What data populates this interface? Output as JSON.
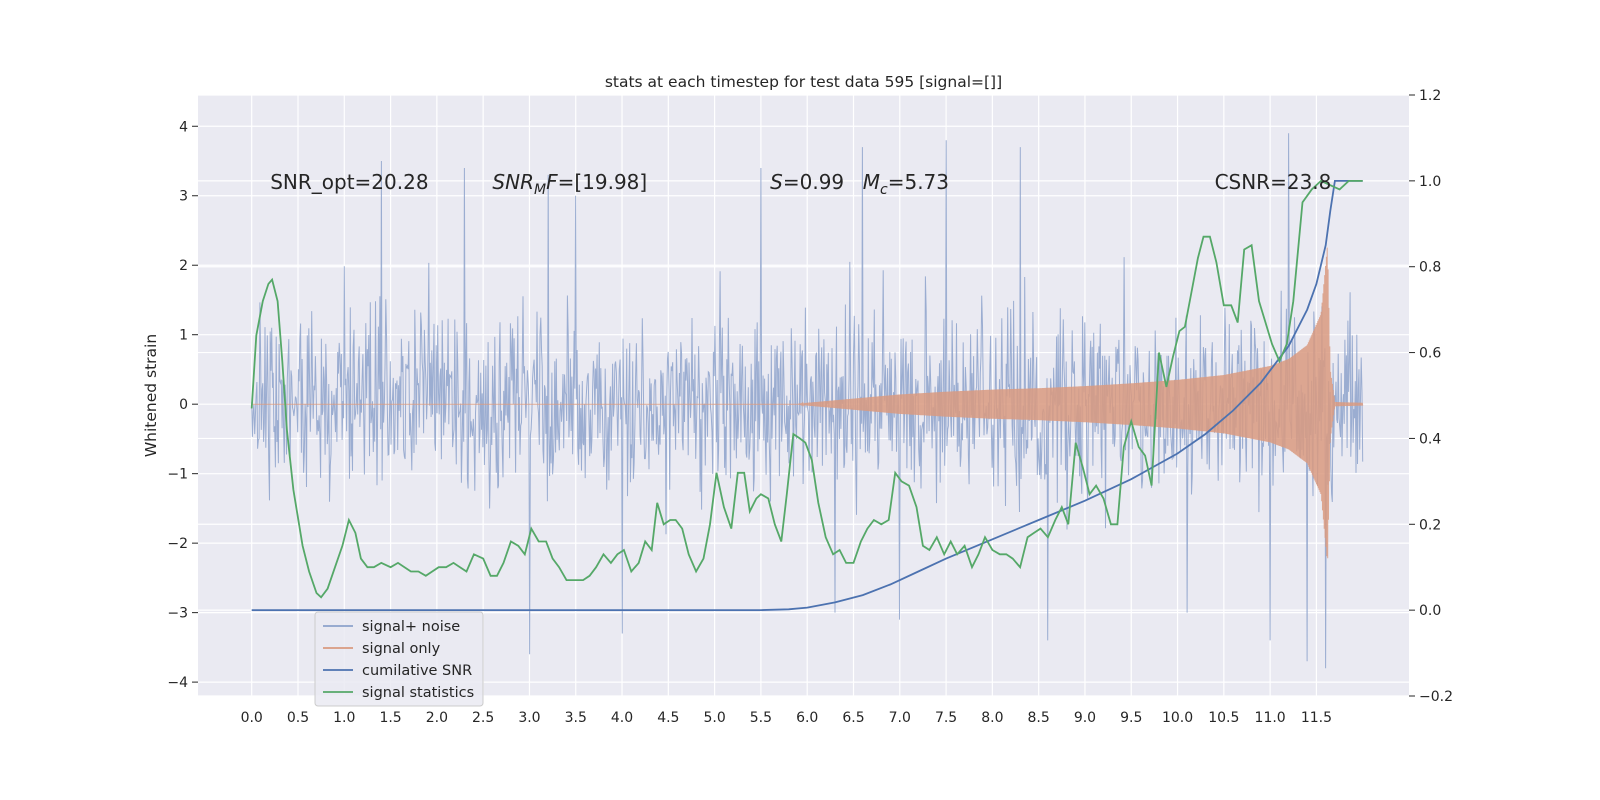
{
  "chart_data": {
    "type": "line",
    "title": "stats at each timestep for test data 595 [signal=[]]",
    "xlabel": "",
    "ylabel": "Whitened strain",
    "ylabel_right": "",
    "xlim": [
      -0.58,
      12.5
    ],
    "ylim": [
      -4.2,
      4.45
    ],
    "ylim_right": [
      -0.2,
      1.2
    ],
    "x_ticks": [
      0.0,
      0.5,
      1.0,
      1.5,
      2.0,
      2.5,
      3.0,
      3.5,
      4.0,
      4.5,
      5.0,
      5.5,
      6.0,
      6.5,
      7.0,
      7.5,
      8.0,
      8.5,
      9.0,
      9.5,
      10.0,
      10.5,
      11.0,
      11.5
    ],
    "x_tick_labels": [
      "0.0",
      "0.5",
      "1.0",
      "1.5",
      "2.0",
      "2.5",
      "3.0",
      "3.5",
      "4.0",
      "4.5",
      "5.0",
      "5.5",
      "6.0",
      "6.5",
      "7.0",
      "7.5",
      "8.0",
      "8.5",
      "9.0",
      "9.5",
      "10.0",
      "10.5",
      "11.0",
      "11.5"
    ],
    "y_ticks": [
      -4,
      -3,
      -2,
      -1,
      0,
      1,
      2,
      3,
      4
    ],
    "y_tick_labels": [
      "−4",
      "−3",
      "−2",
      "−1",
      "0",
      "1",
      "2",
      "3",
      "4"
    ],
    "y_right_ticks": [
      -0.2,
      0.0,
      0.2,
      0.4,
      0.6,
      0.8,
      1.0,
      1.2
    ],
    "y_right_tick_labels": [
      "−0.2",
      "0.0",
      "0.2",
      "0.4",
      "0.6",
      "0.8",
      "1.0",
      "1.2"
    ],
    "grid": true,
    "legend_position": "lower-left",
    "annotations": [
      {
        "key": "snr_opt",
        "text": "SNR_opt=20.28",
        "x": 0.2,
        "y": 3.2
      },
      {
        "key": "snr_mf",
        "text": "SNR_MF=[19.98]",
        "x": 2.6,
        "y": 3.2
      },
      {
        "key": "s",
        "text": "S=0.99",
        "x": 5.6,
        "y": 3.2
      },
      {
        "key": "mc",
        "text": "M_c=5.73",
        "x": 6.6,
        "y": 3.2
      },
      {
        "key": "csnr",
        "text": "CSNR=23.8",
        "x": 10.4,
        "y": 3.2
      }
    ],
    "series": [
      {
        "name": "signal+ noise",
        "axis": "left",
        "color": "#8da2cb",
        "kind": "noise",
        "x_range": [
          0.0,
          12.0
        ],
        "sample_count": 1500,
        "typical_range": [
          -2.0,
          2.0
        ],
        "spikes": [
          [
            1.4,
            3.5
          ],
          [
            2.3,
            3.4
          ],
          [
            3.2,
            3.3
          ],
          [
            3.5,
            3.0
          ],
          [
            5.5,
            3.4
          ],
          [
            6.6,
            3.7
          ],
          [
            7.5,
            3.8
          ],
          [
            8.3,
            3.7
          ],
          [
            11.2,
            4.1
          ],
          [
            3.0,
            -3.6
          ],
          [
            4.0,
            -3.3
          ],
          [
            8.6,
            -3.4
          ],
          [
            11.0,
            -3.4
          ],
          [
            11.4,
            -3.7
          ],
          [
            11.6,
            -3.8
          ],
          [
            7.0,
            -3.1
          ],
          [
            10.1,
            -3.0
          ],
          [
            6.3,
            -3.0
          ]
        ]
      },
      {
        "name": "signal only",
        "axis": "left",
        "color": "#d99a80",
        "kind": "chirp",
        "envelope_x": [
          0.0,
          5.9,
          6.0,
          6.5,
          7.0,
          7.5,
          8.0,
          8.5,
          9.0,
          9.5,
          10.0,
          10.5,
          11.0,
          11.2,
          11.4,
          11.55,
          11.62,
          11.65,
          11.7,
          12.0
        ],
        "envelope_amp": [
          0.0,
          0.0,
          0.02,
          0.08,
          0.14,
          0.18,
          0.21,
          0.23,
          0.26,
          0.3,
          0.35,
          0.42,
          0.55,
          0.65,
          0.85,
          1.3,
          2.3,
          0.5,
          0.03,
          0.02
        ]
      },
      {
        "name": "cumilative SNR",
        "axis": "right",
        "color": "#4c72b0",
        "x": [
          0.0,
          5.5,
          5.8,
          6.0,
          6.3,
          6.6,
          6.9,
          7.2,
          7.5,
          8.0,
          8.5,
          9.0,
          9.5,
          10.0,
          10.3,
          10.6,
          10.9,
          11.2,
          11.4,
          11.5,
          11.6,
          11.65,
          11.7,
          12.0
        ],
        "values": [
          0.0,
          0.0,
          0.002,
          0.006,
          0.018,
          0.035,
          0.06,
          0.09,
          0.12,
          0.165,
          0.21,
          0.255,
          0.305,
          0.365,
          0.41,
          0.465,
          0.53,
          0.615,
          0.7,
          0.76,
          0.85,
          0.93,
          1.0,
          1.0
        ]
      },
      {
        "name": "signal statistics",
        "axis": "right",
        "color": "#55a868",
        "x": [
          0.0,
          0.05,
          0.12,
          0.18,
          0.22,
          0.28,
          0.33,
          0.38,
          0.45,
          0.55,
          0.62,
          0.7,
          0.75,
          0.82,
          0.9,
          0.98,
          1.05,
          1.12,
          1.18,
          1.25,
          1.32,
          1.4,
          1.5,
          1.58,
          1.65,
          1.72,
          1.8,
          1.88,
          1.95,
          2.02,
          2.1,
          2.18,
          2.25,
          2.32,
          2.4,
          2.5,
          2.58,
          2.65,
          2.72,
          2.8,
          2.88,
          2.95,
          3.02,
          3.1,
          3.18,
          3.25,
          3.32,
          3.4,
          3.5,
          3.58,
          3.65,
          3.72,
          3.8,
          3.88,
          3.95,
          4.02,
          4.1,
          4.18,
          4.25,
          4.32,
          4.38,
          4.45,
          4.52,
          4.58,
          4.65,
          4.72,
          4.8,
          4.88,
          4.95,
          5.02,
          5.1,
          5.18,
          5.25,
          5.32,
          5.38,
          5.45,
          5.5,
          5.58,
          5.65,
          5.72,
          5.78,
          5.85,
          5.92,
          5.98,
          6.05,
          6.12,
          6.2,
          6.28,
          6.35,
          6.42,
          6.5,
          6.58,
          6.65,
          6.72,
          6.8,
          6.88,
          6.95,
          7.02,
          7.1,
          7.18,
          7.25,
          7.32,
          7.4,
          7.48,
          7.55,
          7.62,
          7.7,
          7.78,
          7.85,
          7.92,
          8.0,
          8.08,
          8.15,
          8.22,
          8.3,
          8.38,
          8.45,
          8.52,
          8.6,
          8.68,
          8.75,
          8.82,
          8.9,
          8.98,
          9.05,
          9.12,
          9.2,
          9.28,
          9.35,
          9.42,
          9.5,
          9.58,
          9.65,
          9.72,
          9.8,
          9.88,
          9.95,
          10.02,
          10.08,
          10.15,
          10.22,
          10.28,
          10.35,
          10.42,
          10.5,
          10.58,
          10.65,
          10.72,
          10.8,
          10.88,
          10.95,
          11.02,
          11.1,
          11.18,
          11.25,
          11.35,
          11.45,
          11.55,
          11.65,
          11.75,
          11.85,
          11.95,
          12.0
        ],
        "values": [
          0.47,
          0.64,
          0.72,
          0.76,
          0.77,
          0.72,
          0.58,
          0.42,
          0.28,
          0.15,
          0.09,
          0.04,
          0.03,
          0.05,
          0.1,
          0.15,
          0.21,
          0.18,
          0.12,
          0.1,
          0.1,
          0.11,
          0.1,
          0.11,
          0.1,
          0.09,
          0.09,
          0.08,
          0.09,
          0.1,
          0.1,
          0.11,
          0.1,
          0.09,
          0.13,
          0.12,
          0.08,
          0.08,
          0.11,
          0.16,
          0.15,
          0.13,
          0.19,
          0.16,
          0.16,
          0.12,
          0.1,
          0.07,
          0.07,
          0.07,
          0.08,
          0.1,
          0.13,
          0.11,
          0.13,
          0.14,
          0.09,
          0.11,
          0.16,
          0.14,
          0.25,
          0.2,
          0.21,
          0.21,
          0.19,
          0.13,
          0.09,
          0.12,
          0.2,
          0.32,
          0.24,
          0.19,
          0.32,
          0.32,
          0.23,
          0.26,
          0.27,
          0.26,
          0.2,
          0.16,
          0.27,
          0.41,
          0.4,
          0.39,
          0.35,
          0.25,
          0.17,
          0.13,
          0.14,
          0.11,
          0.11,
          0.16,
          0.19,
          0.21,
          0.2,
          0.21,
          0.32,
          0.3,
          0.29,
          0.24,
          0.15,
          0.14,
          0.17,
          0.13,
          0.16,
          0.13,
          0.15,
          0.1,
          0.13,
          0.17,
          0.14,
          0.13,
          0.13,
          0.12,
          0.1,
          0.17,
          0.18,
          0.19,
          0.17,
          0.21,
          0.24,
          0.2,
          0.39,
          0.33,
          0.27,
          0.29,
          0.26,
          0.2,
          0.2,
          0.38,
          0.44,
          0.38,
          0.36,
          0.29,
          0.6,
          0.52,
          0.59,
          0.65,
          0.66,
          0.74,
          0.82,
          0.87,
          0.87,
          0.81,
          0.71,
          0.71,
          0.67,
          0.84,
          0.85,
          0.72,
          0.67,
          0.62,
          0.58,
          0.62,
          0.72,
          0.95,
          0.98,
          1.0,
          0.99,
          0.98,
          1.0,
          1.0,
          1.0
        ]
      }
    ]
  }
}
